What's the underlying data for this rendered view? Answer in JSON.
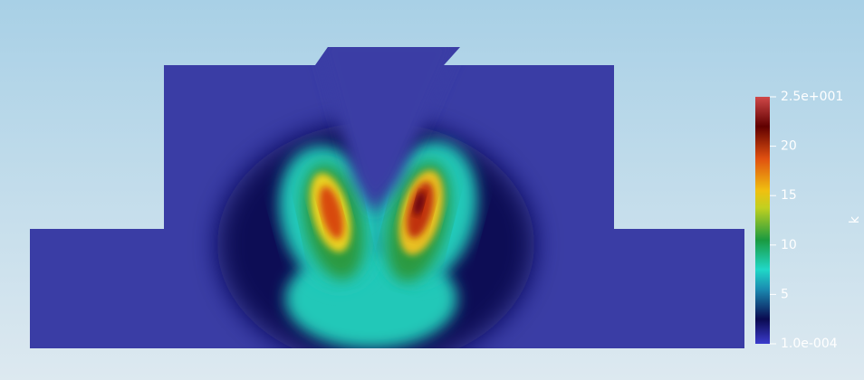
{
  "colorbar": {
    "title": "k",
    "range": [
      0.0001,
      25
    ],
    "ticks": [
      {
        "value": 25,
        "label": "2.5e+001"
      },
      20,
      15,
      10,
      5,
      {
        "value": 0.0001,
        "label": "1.0e-004"
      }
    ]
  }
}
